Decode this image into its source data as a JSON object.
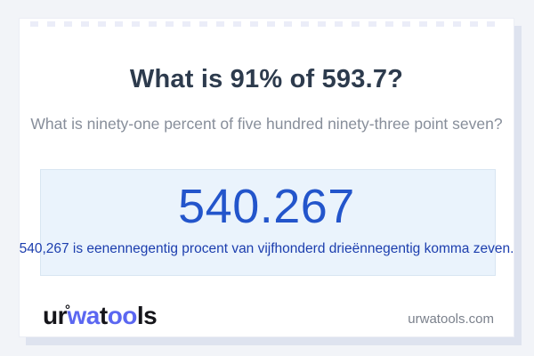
{
  "header": {
    "title": "What is 91% of 593.7?",
    "subtitle": "What is ninety-one percent of five hundred ninety-three point seven?"
  },
  "answer": {
    "value": "540.267",
    "sentence": "540,267 is eenennegentig procent van vijfhonderd drieënnegentig komma zeven."
  },
  "footer": {
    "logo": {
      "ur": "ur",
      "degree": "°",
      "wa": "wa",
      "t": "t",
      "oo": "oo",
      "ls": "ls"
    },
    "domain": "urwatools.com"
  },
  "colors": {
    "page_bg": "#f2f4f8",
    "card_bg": "#ffffff",
    "card_shadow": "#dee3ef",
    "title_text": "#2d3b4d",
    "subtitle_text": "#878e9a",
    "answer_box_bg": "#eaf3fc",
    "answer_box_border": "#d8e6f2",
    "answer_value": "#2355cb",
    "answer_sentence": "#1c3eae",
    "logo_blue": "#5b67f1",
    "logo_dark": "#15151a",
    "domain_text": "#7b818c"
  }
}
